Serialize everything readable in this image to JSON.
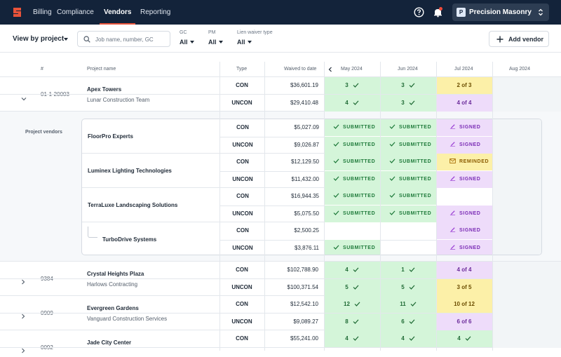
{
  "nav": {
    "items": [
      {
        "label": "Billing",
        "active": false
      },
      {
        "label": "Compliance",
        "active": false
      },
      {
        "label": "Vendors",
        "active": true
      },
      {
        "label": "Reporting",
        "active": false
      }
    ],
    "company": {
      "initial": "P",
      "name": "Precision Masonry"
    },
    "accent_color": "#e8533a"
  },
  "filters": {
    "view_by": "View by project",
    "search_placeholder": "Job name, number, GC",
    "gc": {
      "label": "GC",
      "value": "All"
    },
    "pm": {
      "label": "PM",
      "value": "All"
    },
    "lien": {
      "label": "Lien waiver type",
      "value": "All"
    },
    "add_vendor": "Add vendor"
  },
  "table": {
    "headers": {
      "num": "#",
      "project": "Project name",
      "type": "Type",
      "waived": "Waived to date",
      "months": [
        "May 2024",
        "Jun 2024",
        "Jul 2024",
        "Aug 2024"
      ]
    },
    "projects": [
      {
        "number": "01-1-20003",
        "name": "Apex Towers",
        "gc": "Lunar Construction Team",
        "rows": [
          {
            "type": "CON",
            "waived": "$36,601.19",
            "may": "3",
            "jun": "3",
            "jul": "2 of 3"
          },
          {
            "type": "UNCON",
            "waived": "$29,410.48",
            "may": "4",
            "jun": "3",
            "jul": "4 of 4"
          }
        ]
      },
      {
        "number": "9384",
        "name": "Crystal Heights Plaza",
        "gc": "Harlows Contracting",
        "rows": [
          {
            "type": "CON",
            "waived": "$102,788.90",
            "may": "4",
            "jun": "1",
            "jul": "4 of 4"
          },
          {
            "type": "UNCON",
            "waived": "$100,371.54",
            "may": "5",
            "jun": "5",
            "jul": "3 of 5"
          }
        ]
      },
      {
        "number": "0909",
        "name": "Evergreen Gardens",
        "gc": "Vanguard Construction Services",
        "rows": [
          {
            "type": "CON",
            "waived": "$12,542.10",
            "may": "12",
            "jun": "11",
            "jul": "10 of 12"
          },
          {
            "type": "UNCON",
            "waived": "$9,089.27",
            "may": "8",
            "jun": "6",
            "jul": "6 of 6"
          }
        ]
      },
      {
        "number": "0092",
        "name": "Jade City Center",
        "gc": "",
        "rows": [
          {
            "type": "CON",
            "waived": "$55,241.00",
            "may": "4",
            "jun": "4",
            "jul": "4"
          }
        ]
      }
    ],
    "project_vendors_label": "Project vendors",
    "vendors": [
      {
        "name": "FloorPro Experts",
        "rows": [
          {
            "type": "CON",
            "waived": "$5,027.09",
            "may": "SUBMITTED",
            "jun": "SUBMITTED",
            "jul": "SIGNED"
          },
          {
            "type": "UNCON",
            "waived": "$9,026.87",
            "may": "SUBMITTED",
            "jun": "SUBMITTED",
            "jul": "SIGNED"
          }
        ]
      },
      {
        "name": "Luminex Lighting Technologies",
        "rows": [
          {
            "type": "CON",
            "waived": "$12,129.50",
            "may": "SUBMITTED",
            "jun": "SUBMITTED",
            "jul": "REMINDED"
          },
          {
            "type": "UNCON",
            "waived": "$11,432.00",
            "may": "SUBMITTED",
            "jun": "SUBMITTED",
            "jul": "SIGNED"
          }
        ]
      },
      {
        "name": "TerraLuxe Landscaping Solutions",
        "rows": [
          {
            "type": "CON",
            "waived": "$16,944.35",
            "may": "SUBMITTED",
            "jun": "SUBMITTED",
            "jul": ""
          },
          {
            "type": "UNCON",
            "waived": "$5,075.50",
            "may": "SUBMITTED",
            "jun": "SUBMITTED",
            "jul": "SIGNED"
          }
        ]
      },
      {
        "name": "TurboDrive Systems",
        "rows": [
          {
            "type": "CON",
            "waived": "$2,500.25",
            "may": "",
            "jun": "",
            "jul": "SIGNED"
          },
          {
            "type": "UNCON",
            "waived": "$3,876.11",
            "may": "SUBMITTED",
            "jun": "",
            "jul": "SIGNED"
          }
        ]
      }
    ]
  }
}
